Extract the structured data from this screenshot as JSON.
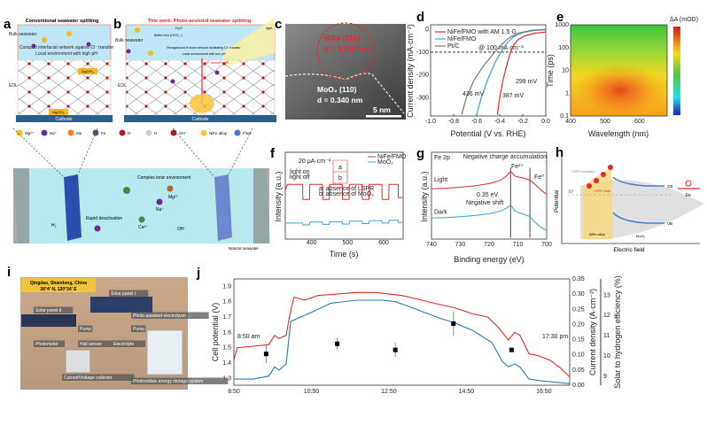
{
  "panel_labels": {
    "a": "a",
    "b": "b",
    "c": "c",
    "d": "d",
    "e": "e",
    "f": "f",
    "g": "g",
    "h": "h",
    "i": "i",
    "j": "j"
  },
  "panel_a": {
    "title": "Conventional seawater splitting",
    "bulk_seawater": "Bulk seawater",
    "line1": "Compact interfacial network against Cl⁻ transfer",
    "line2": "Local environment with high pH",
    "edl": "EDL",
    "precipitate": "Mg(OH)₂",
    "cathode": "Cathode"
  },
  "panel_b": {
    "title": "This work: Photo-assisted seawater splitting",
    "bulk_seawater": "Bulk seawater",
    "buffer": "Buffer ions (HCO₃⁻)",
    "water": "H₂O",
    "line1": "Reorganized H-bond network facilitating Cl⁻ transfer",
    "line2": "Local environment with low pH",
    "path": "Li⁺ transfer path",
    "light": "light",
    "edl": "EDL",
    "cathode": "Cathode"
  },
  "legend": [
    {
      "label": "Mg²⁺",
      "color": "#f5b820"
    },
    {
      "label": "Na⁺",
      "color": "#6a2c91"
    },
    {
      "label": "Mo",
      "color": "#ef7d2e"
    },
    {
      "label": "Fe",
      "color": "#4a5a70"
    },
    {
      "label": "O",
      "color": "#b01c1c"
    },
    {
      "label": "H",
      "color": "#cfcfcf"
    },
    {
      "label": "OH⁻",
      "color": "#b01c1c"
    },
    {
      "label": "NiFe alloy",
      "color": "#f8c440"
    },
    {
      "label": "Flow",
      "color": "#4a7ac8"
    }
  ],
  "tank": {
    "complex": "Complex ionic environment",
    "deactivation": "Rapid deactivation",
    "h2": "H₂",
    "mg": "Mg²⁺",
    "na": "Na⁺",
    "ca": "Ca²⁺",
    "oh": "OH⁻",
    "natural": "Natural seawater"
  },
  "panel_c": {
    "nife": "NiFe (111)",
    "nife_d": "d = 0.202 nm",
    "moo2": "MoO₂ (110)",
    "moo2_d": "d = 0.340 nm",
    "scale": "5 nm"
  },
  "panel_h": {
    "lspr": "LSPR excitation",
    "ef": "Ef",
    "lspr_state": "LSPR state",
    "cb": "CB",
    "vb": "VB",
    "fe": "Fe",
    "nife": "NiFe alloy",
    "moo2": "MoO₂",
    "ylabel": "Potential",
    "xlabel": "Electric field"
  },
  "panel_i": {
    "location": "Qingdao, Shandong, China",
    "coords": "36°4' N, 120°24' E",
    "labels": [
      "Solar panel Ⅰ",
      "Solar panel Ⅱ",
      "Photo-assisted electrolyzer",
      "Pump",
      "Pump",
      "Photometer",
      "Hall sensor",
      "Electrolyte",
      "Current/Voltage collector",
      "Photovoltaic energy storage system"
    ]
  },
  "chart_data": [
    {
      "id": "d",
      "type": "line",
      "xlabel": "Potential (V vs. RHE)",
      "ylabel": "Current density (mA·cm⁻²)",
      "xlim": [
        -1.0,
        0.0
      ],
      "ylim": [
        -380,
        20
      ],
      "xticks": [
        "-1.0",
        "-0.8",
        "-0.6",
        "-0.4",
        "-0.2",
        "0.0"
      ],
      "yticks": [
        "0",
        "-100",
        "-200",
        "-300"
      ],
      "legend_position": "top-left",
      "reference_line": {
        "y": -100,
        "label": "@ 100 mA·cm⁻²"
      },
      "annotations": [
        "299 mV",
        "387 mV",
        "436 mV"
      ],
      "series": [
        {
          "name": "NiFe/FMO with AM 1.5 G",
          "color": "#e8262b",
          "x": [
            -0.42,
            -0.4,
            -0.37,
            -0.34,
            -0.31,
            -0.28,
            -0.24,
            -0.18,
            -0.1,
            0.0
          ],
          "y": [
            -375,
            -300,
            -220,
            -160,
            -105,
            -70,
            -45,
            -28,
            -17,
            -12
          ]
        },
        {
          "name": "NiFe/FMO",
          "color": "#3fa0d8",
          "x": [
            -0.6,
            -0.56,
            -0.5,
            -0.44,
            -0.39,
            -0.34,
            -0.28,
            -0.2,
            -0.1,
            0.0
          ],
          "y": [
            -375,
            -300,
            -215,
            -145,
            -100,
            -62,
            -32,
            -14,
            -5,
            -2
          ]
        },
        {
          "name": "Pt/C",
          "color": "#777777",
          "x": [
            -0.73,
            -0.69,
            -0.62,
            -0.54,
            -0.46,
            -0.39,
            -0.32,
            -0.24,
            -0.12,
            0.0
          ],
          "y": [
            -375,
            -300,
            -220,
            -160,
            -110,
            -70,
            -38,
            -17,
            -4,
            0
          ]
        }
      ]
    },
    {
      "id": "e",
      "type": "heatmap",
      "xlabel": "Wavelength (nm)",
      "ylabel": "Time (ps)",
      "xlim": [
        400,
        680
      ],
      "ylim": [
        0.1,
        1000
      ],
      "yscale": "log",
      "xticks": [
        "400",
        "500",
        "600"
      ],
      "yticks": [
        "0.1",
        "1",
        "10",
        "100",
        "1000"
      ],
      "colorbar_label": "ΔA (mOD)"
    },
    {
      "id": "f",
      "type": "line",
      "xlabel": "Time (s)",
      "ylabel": "Intensity (a.u.)",
      "xlim": [
        327,
        654
      ],
      "ylim": [
        0,
        4.6
      ],
      "xticks": [
        "400",
        "500",
        "600"
      ],
      "scale_bar": "20 μA·cm⁻²",
      "annotations": [
        "light on",
        "light off",
        "a",
        "b",
        "a: absence of LSPR",
        "b: absence of MoO₂"
      ],
      "series": [
        {
          "name": "NiFe/FMO",
          "color": "#e8262b",
          "x": [
            327,
            333,
            375,
            376,
            394,
            395,
            430,
            431,
            449,
            450,
            485,
            486,
            504,
            505,
            540,
            541,
            559,
            560,
            595,
            596,
            614,
            615,
            640,
            641,
            652
          ],
          "y": [
            2.6,
            2.9,
            2.9,
            2.1,
            2.1,
            2.9,
            2.9,
            2.1,
            2.1,
            2.9,
            2.9,
            2.1,
            2.1,
            2.9,
            2.9,
            2.1,
            2.1,
            2.9,
            2.9,
            2.1,
            2.1,
            2.9,
            2.9,
            2.2,
            2.2
          ]
        },
        {
          "name": "MoO₂",
          "color": "#3fa0d8",
          "x": [
            327,
            375,
            376,
            394,
            395,
            430,
            431,
            449,
            450,
            485,
            486,
            504,
            505,
            540,
            541,
            559,
            560,
            595,
            596,
            614,
            615,
            640,
            641,
            652
          ],
          "y": [
            0.85,
            0.85,
            0.75,
            0.75,
            0.9,
            0.9,
            0.78,
            0.78,
            0.92,
            0.92,
            0.8,
            0.8,
            0.95,
            0.95,
            0.82,
            0.82,
            0.97,
            0.97,
            0.85,
            0.85,
            1.0,
            1.0,
            0.88,
            0.88
          ]
        }
      ]
    },
    {
      "id": "g",
      "type": "line",
      "title": "Fe 2p",
      "xlabel": "Binding energy (eV)",
      "ylabel": "Intensity (a.u.)",
      "xlim": [
        740,
        700
      ],
      "ylim": [
        -0.8,
        2.3
      ],
      "xticks": [
        "740",
        "730",
        "720",
        "710",
        "700"
      ],
      "annotations": [
        "Negative charge accumulation",
        "Fe²⁺",
        "Fe⁰",
        "0.35 eV",
        "Negative shift"
      ],
      "vlines": [
        712.5,
        705.8
      ],
      "series": [
        {
          "name": "Light",
          "color": "#e8262b",
          "x": [
            740,
            735,
            730,
            725,
            720,
            716,
            714,
            712.5,
            711,
            709,
            707,
            705.8,
            704,
            702,
            700
          ],
          "y": [
            1.0,
            1.02,
            1.05,
            1.1,
            1.18,
            1.3,
            1.45,
            1.62,
            1.45,
            1.4,
            1.35,
            1.3,
            1.15,
            0.95,
            0.8
          ]
        },
        {
          "name": "Dark",
          "color": "#3fa0d8",
          "x": [
            740,
            735,
            730,
            725,
            720,
            716,
            714,
            712.5,
            711,
            709,
            707,
            705.8,
            704,
            702,
            700
          ],
          "y": [
            -0.05,
            -0.03,
            0.0,
            0.04,
            0.1,
            0.2,
            0.3,
            0.42,
            0.2,
            0.12,
            0.05,
            0.0,
            -0.2,
            -0.38,
            -0.5
          ]
        }
      ]
    },
    {
      "id": "j",
      "type": "line",
      "xlabel": "",
      "xlim": [
        "8:50",
        "17:30"
      ],
      "xticks": [
        "8:50",
        "10:50",
        "12:50",
        "14:50",
        "16:50"
      ],
      "annotations": [
        "8:50 am",
        "17:30 pm"
      ],
      "axes": [
        {
          "label": "Cell potential (V)",
          "color": "#e8262b",
          "side": "left",
          "ylim": [
            1.256,
            1.948
          ],
          "ticks": [
            "1.3",
            "1.4",
            "1.5",
            "1.6",
            "1.7",
            "1.8",
            "1.9"
          ]
        },
        {
          "label": "Current density (A·cm⁻²)",
          "color": "#2a7ab8",
          "side": "right",
          "ylim": [
            0,
            0.35
          ],
          "ticks": [
            "0.00",
            "0.05",
            "0.10",
            "0.15",
            "0.20",
            "0.25",
            "0.30",
            "0.35"
          ]
        },
        {
          "label": "Solar to hydrogen efficiency (%)",
          "color": "#222222",
          "side": "right-outer",
          "ylim": [
            8.56,
            13.8
          ],
          "ticks": [
            "9",
            "10",
            "11",
            "12",
            "13"
          ]
        }
      ],
      "series": [
        {
          "name": "Cell potential",
          "axis": 0,
          "color": "#e8262b",
          "x": [
            "8:50",
            "8:55",
            "9:20",
            "9:44",
            "9:53",
            "10:00",
            "10:11",
            "10:16",
            "10:23",
            "10:40",
            "11:00",
            "11:30",
            "12:00",
            "12:30",
            "13:10",
            "13:40",
            "14:10",
            "14:32",
            "15:00",
            "15:23",
            "15:40",
            "15:55",
            "16:05",
            "16:13",
            "16:27",
            "16:40",
            "16:59",
            "17:15",
            "17:30"
          ],
          "y": [
            1.42,
            1.5,
            1.51,
            1.52,
            1.58,
            1.56,
            1.58,
            1.7,
            1.83,
            1.81,
            1.84,
            1.85,
            1.86,
            1.86,
            1.84,
            1.81,
            1.78,
            1.76,
            1.72,
            1.7,
            1.63,
            1.55,
            1.6,
            1.58,
            1.46,
            1.45,
            1.42,
            1.37,
            1.31
          ]
        },
        {
          "name": "Current density",
          "axis": 1,
          "color": "#2a7ab8",
          "x": [
            "8:50",
            "9:20",
            "9:44",
            "9:53",
            "10:00",
            "10:11",
            "10:18",
            "10:50",
            "11:20",
            "12:00",
            "12:40",
            "13:00",
            "13:20",
            "14:10",
            "14:32",
            "15:00",
            "15:30",
            "15:45",
            "15:55",
            "16:05",
            "16:13",
            "16:27",
            "16:45",
            "17:30"
          ],
          "y": [
            0.02,
            0.02,
            0.03,
            0.06,
            0.05,
            0.07,
            0.21,
            0.24,
            0.27,
            0.28,
            0.28,
            0.275,
            0.26,
            0.22,
            0.205,
            0.18,
            0.14,
            0.08,
            0.06,
            0.07,
            0.06,
            0.02,
            0.015,
            0.005
          ]
        },
        {
          "name": "Solar to hydrogen efficiency",
          "axis": 2,
          "type": "scatter",
          "color": "#000000",
          "x": [
            "9:40",
            "11:30",
            "13:00",
            "14:30",
            "16:00"
          ],
          "y": [
            10.1,
            10.6,
            10.3,
            11.6,
            10.3
          ],
          "err": [
            0.45,
            0.3,
            0.35,
            0.6,
            0.1
          ]
        }
      ]
    }
  ]
}
